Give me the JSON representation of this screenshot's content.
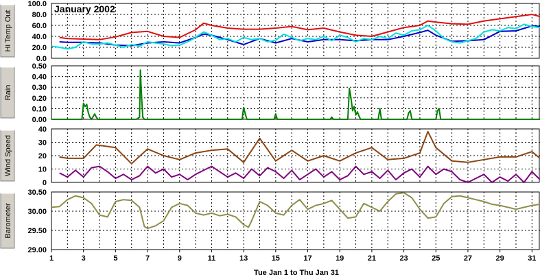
{
  "title": "January 2002",
  "date_range": "Tue Jan 1  to  Thu Jan 31",
  "colors": {
    "hi_temp": "#e01010",
    "dew_point": "#0000c8",
    "temp_out": "#00e0e0",
    "rain": "#008000",
    "wind_hi": "#8b4513",
    "wind_avg": "#800080",
    "barometer": "#8e8e4a"
  },
  "chart_data": [
    {
      "type": "line",
      "ylabel": "Hi Temp Out",
      "ylim": [
        0,
        100
      ],
      "yticks": [
        "0.0",
        "20.0",
        "40.0",
        "60.0",
        "80.0",
        "100.0"
      ],
      "series": [
        {
          "key": "hi_temp",
          "x": [
            1.5,
            2,
            3,
            4,
            5,
            6,
            7,
            8,
            9,
            10,
            10.5,
            11,
            12,
            13,
            14,
            15,
            16,
            17,
            18,
            19,
            20,
            21,
            22,
            23,
            24,
            24.5,
            25,
            26,
            27,
            28,
            29,
            30,
            31,
            31.5
          ],
          "values": [
            38,
            36,
            35,
            34,
            39,
            47,
            49,
            40,
            38,
            52,
            64,
            60,
            55,
            53,
            53,
            55,
            58,
            52,
            55,
            48,
            42,
            40,
            48,
            56,
            60,
            68,
            66,
            63,
            62,
            68,
            72,
            76,
            80,
            76
          ]
        },
        {
          "key": "dew_point",
          "x": [
            1.5,
            2,
            3,
            4,
            5,
            6,
            7,
            8,
            9,
            10,
            10.5,
            11,
            12,
            13,
            14,
            15,
            16,
            17,
            18,
            19,
            20,
            21,
            22,
            23,
            24,
            24.5,
            25,
            26,
            27,
            28,
            29,
            30,
            31,
            31.5
          ],
          "values": [
            30,
            29,
            29,
            28,
            24,
            23,
            28,
            30,
            28,
            38,
            44,
            42,
            34,
            25,
            36,
            28,
            36,
            30,
            34,
            34,
            32,
            34,
            34,
            40,
            47,
            51,
            42,
            31,
            32,
            34,
            49,
            50,
            59,
            58
          ]
        },
        {
          "key": "temp_out",
          "x": [
            1,
            1.5,
            2,
            2.5,
            3,
            3.5,
            4,
            4.5,
            5,
            5.5,
            6,
            6.5,
            7,
            7.5,
            8,
            8.5,
            9,
            9.5,
            10,
            10.5,
            11,
            11.5,
            12,
            12.5,
            13,
            13.5,
            14,
            14.5,
            15,
            15.5,
            16,
            16.5,
            17,
            17.5,
            18,
            18.5,
            19,
            19.5,
            20,
            20.5,
            21,
            21.5,
            22,
            22.5,
            23,
            23.5,
            24,
            24.5,
            25,
            25.5,
            26,
            26.5,
            27,
            27.5,
            28,
            28.5,
            29,
            29.5,
            30,
            30.5,
            31,
            31.5
          ],
          "values": [
            22,
            20,
            17,
            20,
            30,
            26,
            26,
            28,
            24,
            20,
            25,
            22,
            30,
            28,
            26,
            23,
            24,
            30,
            38,
            48,
            42,
            34,
            36,
            30,
            38,
            34,
            36,
            30,
            33,
            44,
            38,
            32,
            36,
            34,
            40,
            32,
            42,
            38,
            30,
            36,
            34,
            40,
            36,
            46,
            42,
            50,
            52,
            60,
            50,
            36,
            30,
            28,
            32,
            36,
            48,
            52,
            50,
            56,
            54,
            62,
            58,
            56
          ]
        }
      ]
    },
    {
      "type": "line",
      "ylabel": "Rain",
      "ylim": [
        0,
        0.5
      ],
      "yticks": [
        "0.00",
        "0.10",
        "0.20",
        "0.30",
        "0.40",
        "0.50"
      ],
      "series": [
        {
          "key": "rain",
          "x": [
            1,
            2.9,
            3,
            3.1,
            3.2,
            3.3,
            3.4,
            3.5,
            3.7,
            3.8,
            3.9,
            6.3,
            6.5,
            6.55,
            6.6,
            6.65,
            6.7,
            6.8,
            12.9,
            13.0,
            13.1,
            13.2,
            14.9,
            15.0,
            15.1,
            18.4,
            18.5,
            18.6,
            19.5,
            19.6,
            19.7,
            19.8,
            19.9,
            20.0,
            20.1,
            20.2,
            20.3,
            21.4,
            21.5,
            21.6,
            23.2,
            23.3,
            23.4,
            23.5,
            25.0,
            25.1,
            25.2,
            25.3,
            31.5
          ],
          "values": [
            0,
            0,
            0.15,
            0.12,
            0.14,
            0.06,
            0.02,
            0,
            0.05,
            0.02,
            0,
            0,
            0.02,
            0.46,
            0.3,
            0.15,
            0.02,
            0,
            0,
            0.11,
            0.05,
            0,
            0,
            0.05,
            0,
            0,
            0.02,
            0,
            0,
            0.29,
            0.2,
            0.08,
            0.12,
            0.04,
            0.07,
            0.03,
            0,
            0,
            0.1,
            0,
            0,
            0.06,
            0.08,
            0,
            0,
            0.08,
            0.1,
            0,
            0
          ]
        }
      ]
    },
    {
      "type": "line",
      "ylabel": "Wind Speed",
      "ylim": [
        0,
        40
      ],
      "yticks": [
        "0",
        "10",
        "20",
        "30",
        "40"
      ],
      "series": [
        {
          "key": "wind_hi",
          "x": [
            1.5,
            2,
            3,
            3.8,
            5,
            6,
            7,
            8,
            9,
            10,
            11,
            12,
            13,
            14,
            15,
            16,
            17,
            18,
            19,
            20,
            21,
            22,
            23,
            24,
            24.5,
            25,
            26,
            27,
            28,
            29,
            30,
            31,
            31.5
          ],
          "values": [
            19,
            18,
            18,
            28,
            26,
            14,
            25,
            20,
            17,
            22,
            24,
            25,
            15,
            33,
            16,
            24,
            16,
            20,
            16,
            22,
            26,
            17,
            18,
            22,
            38,
            26,
            16,
            15,
            17,
            19,
            19,
            23,
            18
          ]
        },
        {
          "key": "wind_avg",
          "x": [
            1.5,
            2,
            2.5,
            3,
            3.5,
            4,
            4.5,
            5,
            5.5,
            6,
            6.5,
            7,
            7.5,
            8,
            8.5,
            9,
            9.5,
            10,
            10.5,
            11,
            11.5,
            12,
            12.5,
            13,
            13.5,
            14,
            14.5,
            15,
            15.5,
            16,
            16.5,
            17,
            17.5,
            18,
            18.5,
            19,
            19.5,
            20,
            20.5,
            21,
            21.5,
            22,
            22.5,
            23,
            23.5,
            24,
            24.5,
            25,
            25.5,
            26,
            26.5,
            27,
            27.5,
            28,
            28.5,
            29,
            29.5,
            30,
            30.5,
            31,
            31.5
          ],
          "values": [
            7,
            4,
            9,
            4,
            11,
            12,
            8,
            3,
            6,
            2,
            5,
            12,
            7,
            10,
            4,
            6,
            2,
            6,
            9,
            12,
            8,
            4,
            7,
            3,
            10,
            5,
            11,
            8,
            3,
            9,
            2,
            6,
            10,
            4,
            8,
            2,
            5,
            12,
            6,
            8,
            3,
            9,
            2,
            7,
            10,
            4,
            12,
            6,
            10,
            8,
            2,
            0,
            3,
            6,
            0,
            4,
            1,
            6,
            0,
            8,
            2
          ]
        }
      ]
    },
    {
      "type": "line",
      "ylabel": "Barometer",
      "ylim": [
        29.0,
        30.5
      ],
      "yticks": [
        "29.00",
        "29.50",
        "30.00",
        "30.50"
      ],
      "series": [
        {
          "key": "barometer",
          "x": [
            1,
            1.5,
            2,
            2.5,
            3,
            3.5,
            4,
            4.5,
            5,
            5.5,
            6,
            6.5,
            6.8,
            7,
            7.5,
            8,
            8.5,
            9,
            9.5,
            10,
            10.5,
            11,
            11.5,
            12,
            12.5,
            13,
            13.3,
            13.5,
            14,
            14.5,
            15,
            15.5,
            16,
            16.5,
            17,
            17.5,
            18,
            18.5,
            19,
            19.5,
            20,
            20.5,
            21,
            21.5,
            22,
            22.5,
            23,
            23.5,
            24,
            24.5,
            25,
            25.5,
            26,
            26.5,
            27,
            27.5,
            28,
            28.5,
            29,
            29.5,
            30,
            30.5,
            31,
            31.5
          ],
          "values": [
            30.1,
            30.12,
            30.3,
            30.4,
            30.35,
            30.2,
            29.9,
            29.85,
            30.25,
            30.3,
            30.28,
            30.1,
            29.6,
            29.55,
            29.62,
            29.75,
            30.1,
            30.2,
            30.15,
            29.95,
            29.9,
            29.95,
            29.88,
            29.92,
            29.85,
            29.65,
            29.58,
            29.75,
            30.25,
            30.15,
            29.95,
            29.9,
            30.15,
            30.3,
            30.05,
            30.15,
            30.2,
            30.28,
            30.05,
            29.82,
            29.85,
            30.2,
            30.1,
            30.0,
            30.25,
            30.45,
            30.48,
            30.35,
            30.05,
            29.82,
            29.85,
            30.2,
            30.38,
            30.4,
            30.35,
            30.3,
            30.25,
            30.18,
            30.15,
            30.1,
            30.05,
            30.1,
            30.15,
            30.18
          ]
        }
      ]
    }
  ],
  "x_axis": {
    "range": [
      1,
      31.5
    ],
    "ticks": [
      {
        "v": 1,
        "label": "1"
      },
      {
        "v": 3,
        "label": "3"
      },
      {
        "v": 5,
        "label": "5"
      },
      {
        "v": 7,
        "label": "7"
      },
      {
        "v": 9,
        "label": "9"
      },
      {
        "v": 11,
        "label": "11"
      },
      {
        "v": 13,
        "label": "13"
      },
      {
        "v": 15,
        "label": "15"
      },
      {
        "v": 17,
        "label": "17"
      },
      {
        "v": 19,
        "label": "19"
      },
      {
        "v": 21,
        "label": "21"
      },
      {
        "v": 23,
        "label": "23"
      },
      {
        "v": 25,
        "label": "25"
      },
      {
        "v": 27,
        "label": "27"
      },
      {
        "v": 29,
        "label": "29"
      },
      {
        "v": 31,
        "label": "31"
      }
    ]
  }
}
